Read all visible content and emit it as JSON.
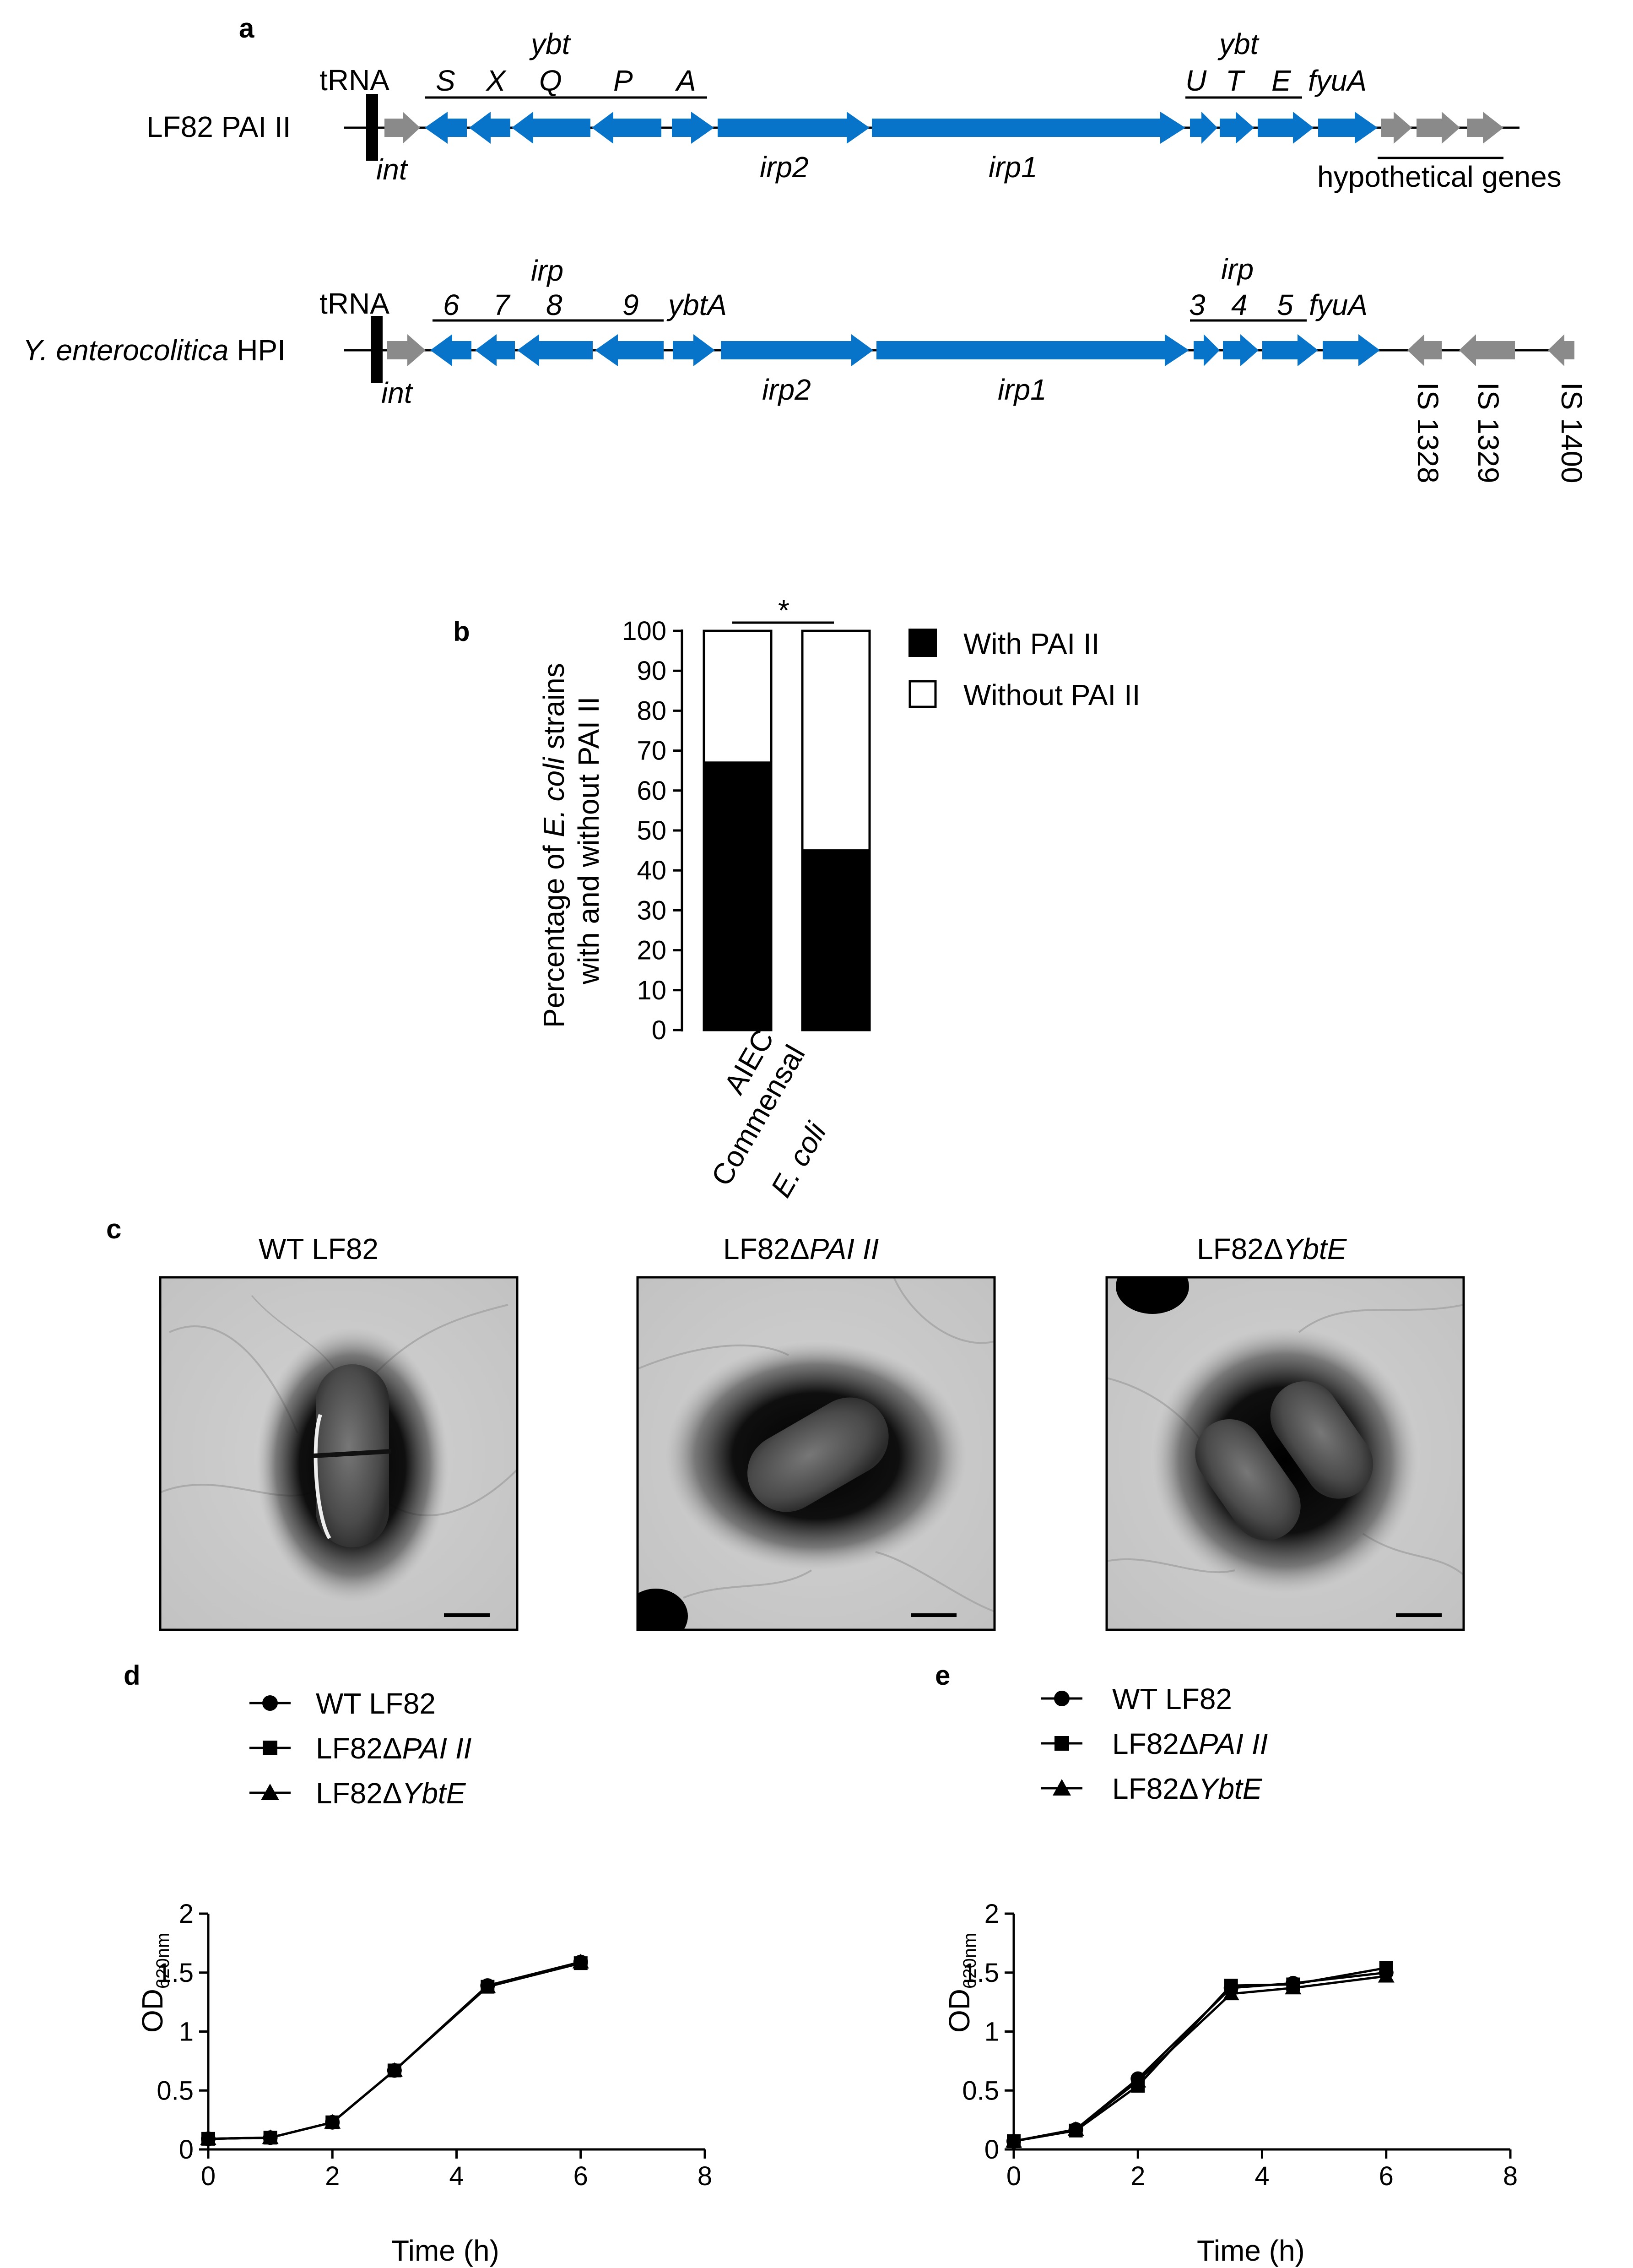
{
  "colors": {
    "gene_blue": "#0874c9",
    "gene_gray": "#8a8a8a",
    "black": "#000000",
    "em_background": "#c9c9c9"
  },
  "panel_a": {
    "letter": "a",
    "track1": {
      "name": "LF82 PAI II",
      "trna": "tRNA",
      "int": "int",
      "group_left": "ybt",
      "group_left_genes": [
        "S",
        "X",
        "Q",
        "P",
        "A"
      ],
      "irp2": "irp2",
      "irp1": "irp1",
      "group_right": "ybt",
      "group_right_genes": [
        "U",
        "T",
        "E"
      ],
      "fyuA": "fyuA",
      "hypothetical": "hypothetical genes"
    },
    "track2": {
      "name_italic": "Y. enterocolitica",
      "name_rest": " HPI",
      "trna": "tRNA",
      "int": "int",
      "group_left": "irp",
      "group_left_genes": [
        "6",
        "7",
        "8",
        "9"
      ],
      "ybtA": "ybtA",
      "irp2": "irp2",
      "irp1": "irp1",
      "group_right": "irp",
      "group_right_genes": [
        "3",
        "4",
        "5"
      ],
      "fyuA": "fyuA",
      "is_elements": [
        "IS 1328",
        "IS 1329",
        "IS 1400"
      ]
    }
  },
  "panel_b": {
    "letter": "b",
    "significance": "*",
    "y_label_line1_pre": "Percentage of ",
    "y_label_line1_italic": "E. coli",
    "y_label_line1_post": " strains",
    "y_label_line2": "with and without PAI II",
    "legend_with": "With PAI II",
    "legend_without": "Without PAI II",
    "categories": [
      "AIEC",
      "Commensal",
      "E. coli"
    ]
  },
  "panel_c": {
    "letter": "c",
    "titles": [
      {
        "pre": "WT LF82",
        "italic": ""
      },
      {
        "pre": "LF82Δ",
        "italic": "PAI II"
      },
      {
        "pre": "LF82Δ",
        "italic": "YbtE"
      }
    ]
  },
  "panel_d": {
    "letter": "d",
    "x_label": "Time (h)",
    "y_label": "OD",
    "y_label_sub": "620nm",
    "legend": [
      {
        "pre": "WT LF82",
        "italic": ""
      },
      {
        "pre": "LF82Δ",
        "italic": "PAI II"
      },
      {
        "pre": "LF82Δ",
        "italic": "YbtE"
      }
    ]
  },
  "panel_e": {
    "letter": "e",
    "x_label": "Time (h)",
    "y_label": "OD",
    "y_label_sub": "620nm",
    "legend": [
      {
        "pre": "WT LF82",
        "italic": ""
      },
      {
        "pre": "LF82Δ",
        "italic": "PAI II"
      },
      {
        "pre": "LF82Δ",
        "italic": "YbtE"
      }
    ]
  },
  "chart_data": [
    {
      "panel": "b",
      "type": "bar",
      "stacked": true,
      "categories": [
        "AIEC",
        "Commensal E. coli"
      ],
      "series": [
        {
          "name": "With PAI II",
          "values": [
            67,
            45
          ]
        },
        {
          "name": "Without PAI II",
          "values": [
            33,
            55
          ]
        }
      ],
      "ylabel": "Percentage of E. coli strains with and without PAI II",
      "ylim": [
        0,
        100
      ],
      "yticks": [
        0,
        10,
        20,
        30,
        40,
        50,
        60,
        70,
        80,
        90,
        100
      ],
      "legend": "right",
      "annotations": [
        "*"
      ]
    },
    {
      "panel": "d",
      "type": "line",
      "xlabel": "Time (h)",
      "ylabel": "OD620nm",
      "xlim": [
        0,
        8
      ],
      "ylim": [
        0,
        2
      ],
      "xticks": [
        "0",
        "2",
        "4",
        "6",
        "8"
      ],
      "yticks": [
        "0",
        "0.5",
        "1",
        "1.5",
        "2"
      ],
      "legend": "top-left",
      "series": [
        {
          "name": "WT LF82",
          "marker": "circle",
          "x": [
            0,
            1,
            2,
            3,
            4.5,
            6
          ],
          "y": [
            0.09,
            0.1,
            0.23,
            0.67,
            1.39,
            1.59
          ],
          "err": [
            0.01,
            0.01,
            0.01,
            0.02,
            0.02,
            0.02
          ]
        },
        {
          "name": "LF82ΔPAI II",
          "marker": "square",
          "x": [
            0,
            1,
            2,
            3,
            4.5,
            6
          ],
          "y": [
            0.09,
            0.1,
            0.23,
            0.67,
            1.38,
            1.58
          ],
          "err": [
            0.01,
            0.01,
            0.01,
            0.02,
            0.02,
            0.02
          ]
        },
        {
          "name": "LF82ΔYbtE",
          "marker": "triangle",
          "x": [
            0,
            1,
            2,
            3,
            4.5,
            6
          ],
          "y": [
            0.09,
            0.1,
            0.23,
            0.67,
            1.38,
            1.59
          ],
          "err": [
            0.01,
            0.01,
            0.01,
            0.02,
            0.02,
            0.02
          ]
        }
      ]
    },
    {
      "panel": "e",
      "type": "line",
      "xlabel": "Time (h)",
      "ylabel": "OD620nm",
      "xlim": [
        0,
        8
      ],
      "ylim": [
        0,
        2
      ],
      "xticks": [
        "0",
        "2",
        "4",
        "6",
        "8"
      ],
      "yticks": [
        "0",
        "0.5",
        "1",
        "1.5",
        "2"
      ],
      "legend": "top-left",
      "series": [
        {
          "name": "WT LF82",
          "marker": "circle",
          "x": [
            0,
            1,
            2,
            3.5,
            4.5,
            6
          ],
          "y": [
            0.07,
            0.17,
            0.6,
            1.37,
            1.41,
            1.5
          ],
          "err": [
            0.01,
            0.01,
            0.02,
            0.03,
            0.03,
            0.04
          ]
        },
        {
          "name": "LF82ΔPAI II",
          "marker": "square",
          "x": [
            0,
            1,
            2,
            3.5,
            4.5,
            6
          ],
          "y": [
            0.07,
            0.16,
            0.54,
            1.39,
            1.4,
            1.54
          ],
          "err": [
            0.01,
            0.01,
            0.02,
            0.03,
            0.03,
            0.04
          ]
        },
        {
          "name": "LF82ΔYbtE",
          "marker": "triangle",
          "x": [
            0,
            1,
            2,
            3.5,
            4.5,
            6
          ],
          "y": [
            0.07,
            0.17,
            0.58,
            1.32,
            1.37,
            1.47
          ],
          "err": [
            0.01,
            0.01,
            0.02,
            0.04,
            0.03,
            0.04
          ]
        }
      ]
    }
  ]
}
